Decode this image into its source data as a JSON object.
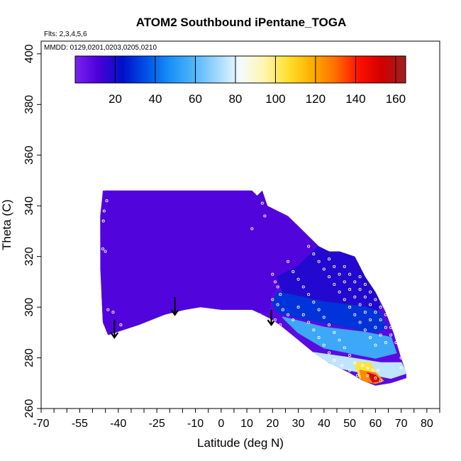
{
  "chart_data": {
    "type": "heatmap",
    "title": "ATOM2 Southbound iPentane_TOGA",
    "annotations": {
      "flights": "Flts: 2,3,4,5,6",
      "dates": "MMDD: 0129,0201,0203,0205,0210"
    },
    "xlabel": "Latitude (deg N)",
    "ylabel": "Theta (C)",
    "xlim": [
      -70,
      85
    ],
    "ylim": [
      260,
      405
    ],
    "x_ticks": [
      -70,
      -55,
      -40,
      -25,
      -10,
      0,
      10,
      20,
      30,
      40,
      50,
      60,
      70,
      80
    ],
    "x_tick_labels": [
      "-70",
      "-55",
      "-40",
      "-25",
      "-10",
      "0",
      "10",
      "20",
      "30",
      "40",
      "50",
      "60",
      "70",
      "80"
    ],
    "y_ticks": [
      260,
      280,
      300,
      320,
      340,
      360,
      380,
      400
    ],
    "y_tick_labels": [
      "260",
      "280",
      "300",
      "320",
      "340",
      "360",
      "380",
      "400"
    ],
    "colorbar": {
      "range": [
        0,
        165
      ],
      "ticks": [
        20,
        40,
        60,
        80,
        100,
        120,
        140,
        160
      ],
      "tick_labels": [
        "20",
        "40",
        "60",
        "80",
        "100",
        "120",
        "140",
        "160"
      ],
      "colors": [
        "#7b22f0",
        "#4a00d8",
        "#0010c8",
        "#0050e8",
        "#1890f8",
        "#4fb4f8",
        "#9fd8fc",
        "#f4fbff",
        "#fff6b0",
        "#ffe030",
        "#ffb000",
        "#ff7000",
        "#ff1000",
        "#d00000",
        "#a02020"
      ]
    },
    "domain_outline": [
      [
        -45,
        346
      ],
      [
        -25,
        346
      ],
      [
        0,
        346
      ],
      [
        12,
        346
      ],
      [
        14,
        344
      ],
      [
        16,
        346
      ],
      [
        18,
        340
      ],
      [
        22,
        338
      ],
      [
        26,
        336
      ],
      [
        30,
        332
      ],
      [
        34,
        328
      ],
      [
        38,
        324
      ],
      [
        42,
        322
      ],
      [
        46,
        322
      ],
      [
        52,
        320
      ],
      [
        56,
        312
      ],
      [
        60,
        306
      ],
      [
        64,
        298
      ],
      [
        67,
        290
      ],
      [
        70,
        280
      ],
      [
        72,
        274
      ],
      [
        72,
        272
      ],
      [
        66,
        270
      ],
      [
        60,
        269
      ],
      [
        55,
        271
      ],
      [
        50,
        274
      ],
      [
        42,
        278
      ],
      [
        36,
        282
      ],
      [
        30,
        287
      ],
      [
        24,
        292
      ],
      [
        20,
        295
      ],
      [
        16,
        297
      ],
      [
        12,
        299
      ],
      [
        6,
        299
      ],
      [
        0,
        299
      ],
      [
        -8,
        300
      ],
      [
        -14,
        299
      ],
      [
        -22,
        297
      ],
      [
        -32,
        293
      ],
      [
        -38,
        291
      ],
      [
        -44,
        289
      ],
      [
        -46,
        294
      ],
      [
        -47,
        315
      ],
      [
        -47,
        336
      ],
      [
        -46,
        346
      ]
    ],
    "regions": [
      {
        "level": 10,
        "polygon": [
          [
            -45,
            346
          ],
          [
            16,
            346
          ],
          [
            18,
            340
          ],
          [
            30,
            332
          ],
          [
            38,
            324
          ],
          [
            40,
            320
          ],
          [
            30,
            316
          ],
          [
            24,
            312
          ],
          [
            20,
            305
          ],
          [
            18,
            298
          ],
          [
            12,
            299
          ],
          [
            0,
            299
          ],
          [
            -14,
            299
          ],
          [
            -32,
            293
          ],
          [
            -44,
            289
          ],
          [
            -46,
            294
          ],
          [
            -47,
            336
          ]
        ]
      },
      {
        "level": 18,
        "polygon": [
          [
            38,
            324
          ],
          [
            46,
            322
          ],
          [
            52,
            320
          ],
          [
            56,
            312
          ],
          [
            60,
            306
          ],
          [
            62,
            300
          ],
          [
            58,
            296
          ],
          [
            50,
            298
          ],
          [
            40,
            300
          ],
          [
            30,
            302
          ],
          [
            24,
            306
          ],
          [
            22,
            312
          ],
          [
            30,
            316
          ]
        ]
      },
      {
        "level": 30,
        "polygon": [
          [
            22,
            306
          ],
          [
            40,
            302
          ],
          [
            56,
            300
          ],
          [
            62,
            298
          ],
          [
            64,
            292
          ],
          [
            60,
            290
          ],
          [
            50,
            292
          ],
          [
            40,
            294
          ],
          [
            30,
            296
          ],
          [
            22,
            298
          ],
          [
            20,
            302
          ]
        ]
      },
      {
        "level": 55,
        "polygon": [
          [
            24,
            296
          ],
          [
            40,
            292
          ],
          [
            56,
            290
          ],
          [
            66,
            288
          ],
          [
            68,
            282
          ],
          [
            60,
            280
          ],
          [
            50,
            282
          ],
          [
            40,
            284
          ],
          [
            30,
            290
          ]
        ]
      },
      {
        "level": 75,
        "polygon": [
          [
            36,
            282
          ],
          [
            50,
            280
          ],
          [
            62,
            278
          ],
          [
            70,
            278
          ],
          [
            72,
            274
          ],
          [
            66,
            272
          ],
          [
            56,
            274
          ],
          [
            46,
            276
          ]
        ]
      },
      {
        "level": 105,
        "polygon": [
          [
            52,
            278
          ],
          [
            58,
            278
          ],
          [
            60,
            274
          ],
          [
            58,
            271
          ],
          [
            54,
            272
          ]
        ]
      },
      {
        "level": 125,
        "polygon": [
          [
            54,
            275
          ],
          [
            60,
            274
          ],
          [
            63,
            271
          ],
          [
            60,
            270
          ],
          [
            55,
            271
          ]
        ]
      },
      {
        "level": 150,
        "polygon": [
          [
            57,
            274
          ],
          [
            60,
            273
          ],
          [
            62,
            271
          ],
          [
            59,
            270.5
          ]
        ]
      }
    ],
    "profile_arrows": [
      {
        "x": -41.5,
        "y_top": 295,
        "y_bottom": 288
      },
      {
        "x": -18,
        "y_top": 304,
        "y_bottom": 297
      },
      {
        "x": 19.5,
        "y_top": 299,
        "y_bottom": 293
      }
    ],
    "sample_points": [
      [
        -45.5,
        338
      ],
      [
        -45.8,
        334
      ],
      [
        -44.5,
        342
      ],
      [
        -46,
        323
      ],
      [
        -45,
        322
      ],
      [
        -44,
        299
      ],
      [
        -42,
        298
      ],
      [
        -39,
        293
      ],
      [
        13,
        347
      ],
      [
        12,
        331
      ],
      [
        16,
        341
      ],
      [
        17,
        336
      ],
      [
        15,
        297
      ],
      [
        20,
        313
      ],
      [
        21,
        310
      ],
      [
        22,
        308
      ],
      [
        23,
        305
      ],
      [
        20,
        303
      ],
      [
        22,
        301
      ],
      [
        24,
        299
      ],
      [
        26,
        297
      ],
      [
        28,
        295
      ],
      [
        23,
        293
      ],
      [
        21,
        295
      ],
      [
        26,
        318
      ],
      [
        28,
        314
      ],
      [
        30,
        311
      ],
      [
        32,
        308
      ],
      [
        34,
        305
      ],
      [
        36,
        302
      ],
      [
        38,
        299
      ],
      [
        40,
        296
      ],
      [
        42,
        293
      ],
      [
        44,
        290
      ],
      [
        46,
        287
      ],
      [
        48,
        284
      ],
      [
        50,
        281
      ],
      [
        52,
        278
      ],
      [
        34,
        324
      ],
      [
        36,
        321
      ],
      [
        38,
        318
      ],
      [
        40,
        315
      ],
      [
        42,
        312
      ],
      [
        44,
        309
      ],
      [
        46,
        306
      ],
      [
        48,
        303
      ],
      [
        50,
        300
      ],
      [
        52,
        297
      ],
      [
        54,
        294
      ],
      [
        56,
        291
      ],
      [
        58,
        288
      ],
      [
        60,
        285
      ],
      [
        42,
        319
      ],
      [
        44,
        316
      ],
      [
        46,
        313
      ],
      [
        48,
        310
      ],
      [
        50,
        307
      ],
      [
        52,
        304
      ],
      [
        54,
        301
      ],
      [
        56,
        298
      ],
      [
        58,
        295
      ],
      [
        60,
        292
      ],
      [
        62,
        289
      ],
      [
        64,
        286
      ],
      [
        48,
        316
      ],
      [
        50,
        313
      ],
      [
        52,
        310
      ],
      [
        54,
        307
      ],
      [
        56,
        304
      ],
      [
        58,
        301
      ],
      [
        60,
        298
      ],
      [
        62,
        295
      ],
      [
        64,
        292
      ],
      [
        66,
        289
      ],
      [
        30,
        300
      ],
      [
        32,
        297
      ],
      [
        34,
        294
      ],
      [
        36,
        291
      ],
      [
        38,
        288
      ],
      [
        40,
        285
      ],
      [
        42,
        282
      ],
      [
        44,
        279
      ],
      [
        54,
        312
      ],
      [
        56,
        309
      ],
      [
        58,
        306
      ],
      [
        60,
        303
      ],
      [
        62,
        300
      ],
      [
        64,
        297
      ],
      [
        66,
        292
      ],
      [
        68,
        286
      ],
      [
        70,
        280
      ],
      [
        70,
        276
      ],
      [
        55,
        277
      ],
      [
        57,
        276
      ],
      [
        59,
        275
      ],
      [
        61,
        275
      ],
      [
        57,
        273
      ],
      [
        60,
        272
      ],
      [
        62,
        271
      ],
      [
        53,
        273
      ],
      [
        50,
        275
      ],
      [
        47,
        277
      ]
    ]
  }
}
